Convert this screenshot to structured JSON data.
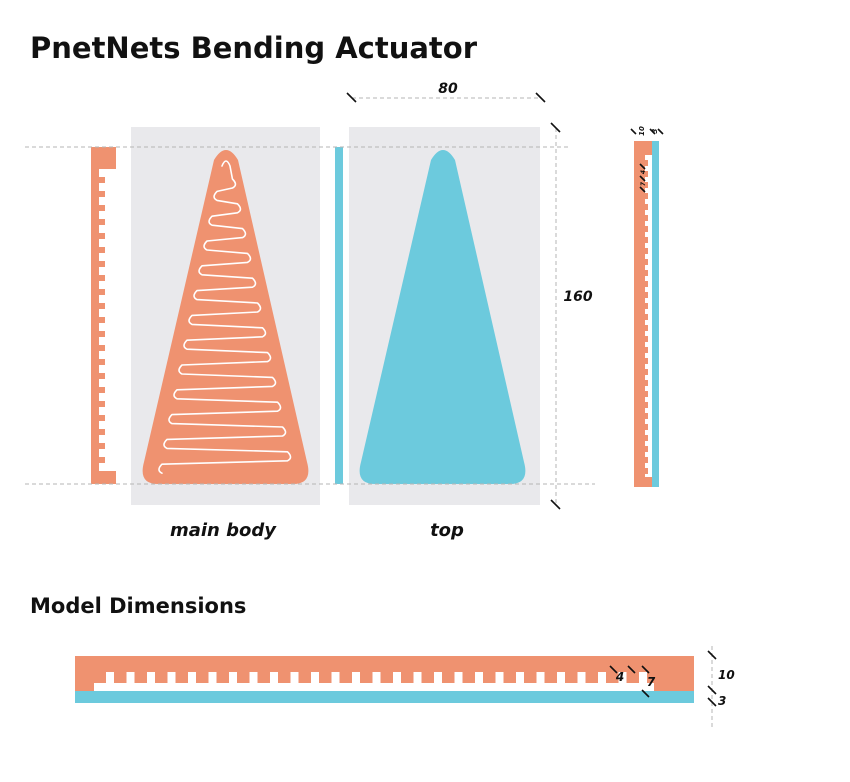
{
  "title": "PnetNets Bending Actuator",
  "section_title": "Model Dimensions",
  "labels": {
    "main_body": "main body",
    "top": "top"
  },
  "dimensions": {
    "width": "80",
    "height": "160",
    "side_wall": "10",
    "side_top": "3",
    "side_gap_a": "4",
    "side_gap_b": "7",
    "model_chamber_width": "4",
    "model_wall_width": "7",
    "model_body_height": "10",
    "model_top_height": "3"
  },
  "colors": {
    "body": "#ef9270",
    "top": "#6ccadd",
    "panel": "#e9e9ec",
    "channel": "#ffffff"
  }
}
